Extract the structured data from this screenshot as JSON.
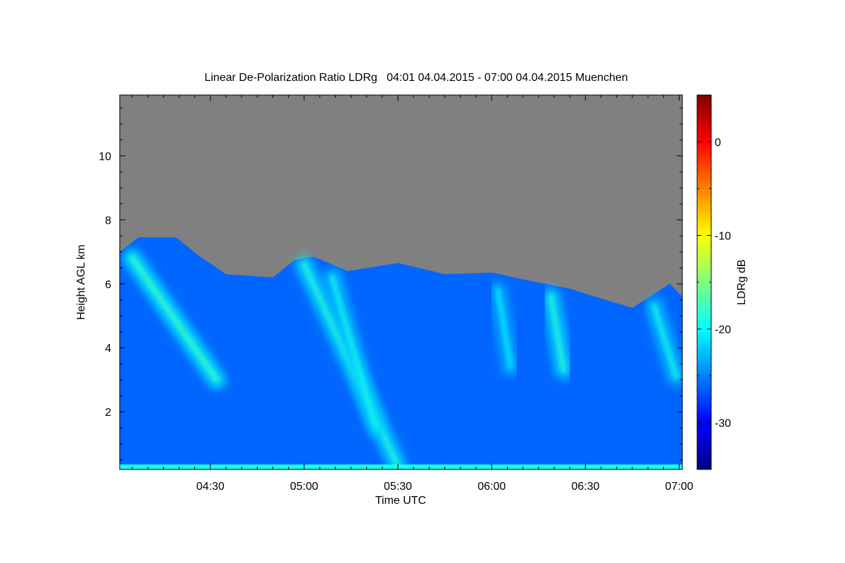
{
  "chart_data": {
    "type": "heatmap",
    "title": "Linear De-Polarization Ratio LDRg   04:01 04.04.2015 - 07:00 04.04.2015 Muenchen",
    "xlabel": "Time UTC",
    "ylabel": "Height AGL km",
    "x_range": [
      "04:01",
      "07:00"
    ],
    "xlim_minutes": [
      241,
      421
    ],
    "xticks": [
      {
        "label": "04:30",
        "minutes": 270
      },
      {
        "label": "05:00",
        "minutes": 300
      },
      {
        "label": "05:30",
        "minutes": 330
      },
      {
        "label": "06:00",
        "minutes": 360
      },
      {
        "label": "06:30",
        "minutes": 390
      },
      {
        "label": "07:00",
        "minutes": 420
      }
    ],
    "ylim": [
      0.2,
      11.9
    ],
    "yticks": [
      2,
      4,
      6,
      8,
      10
    ],
    "colorbar": {
      "label": "LDRg dB",
      "range": [
        -35,
        5
      ],
      "ticks": [
        0,
        -10,
        -20,
        -30
      ],
      "colormap": [
        "#00007f",
        "#0000ff",
        "#0080ff",
        "#00ffff",
        "#80ff80",
        "#ffff00",
        "#ff8000",
        "#ff0000",
        "#7f0000"
      ]
    },
    "no_data_color": "#808080",
    "cloud_top_km": [
      {
        "minutes": 241,
        "height": 7.0
      },
      {
        "minutes": 247,
        "height": 7.45
      },
      {
        "minutes": 259,
        "height": 7.45
      },
      {
        "minutes": 266,
        "height": 6.9
      },
      {
        "minutes": 275,
        "height": 6.3
      },
      {
        "minutes": 290,
        "height": 6.2
      },
      {
        "minutes": 297,
        "height": 6.75
      },
      {
        "minutes": 303,
        "height": 6.85
      },
      {
        "minutes": 314,
        "height": 6.4
      },
      {
        "minutes": 330,
        "height": 6.65
      },
      {
        "minutes": 345,
        "height": 6.3
      },
      {
        "minutes": 360,
        "height": 6.35
      },
      {
        "minutes": 372,
        "height": 6.1
      },
      {
        "minutes": 385,
        "height": 5.85
      },
      {
        "minutes": 393,
        "height": 5.6
      },
      {
        "minutes": 405,
        "height": 5.25
      },
      {
        "minutes": 417,
        "height": 6.0
      },
      {
        "minutes": 421,
        "height": 5.6
      }
    ],
    "fall_streaks": [
      {
        "name": "",
        "top": {
          "minutes": 245,
          "height": 6.8
        },
        "bottom": {
          "minutes": 272,
          "height": 3.0
        },
        "ldr": -20
      },
      {
        "name": "",
        "top": {
          "minutes": 300,
          "height": 6.6
        },
        "bottom": {
          "minutes": 330,
          "height": 0.3
        },
        "ldr": -21
      },
      {
        "name": "",
        "top": {
          "minutes": 309,
          "height": 6.2
        },
        "bottom": {
          "minutes": 323,
          "height": 1.5
        },
        "ldr": -22
      },
      {
        "name": "",
        "top": {
          "minutes": 362,
          "height": 5.8
        },
        "bottom": {
          "minutes": 366,
          "height": 3.4
        },
        "ldr": -23
      },
      {
        "name": "",
        "top": {
          "minutes": 379,
          "height": 5.6
        },
        "bottom": {
          "minutes": 383,
          "height": 3.3
        },
        "ldr": -21
      },
      {
        "name": "",
        "top": {
          "minutes": 412,
          "height": 5.3
        },
        "bottom": {
          "minutes": 419,
          "height": 3.1
        },
        "ldr": -22
      }
    ],
    "background_ldr_db": -26,
    "surface_layer_ldr_db": -19
  }
}
